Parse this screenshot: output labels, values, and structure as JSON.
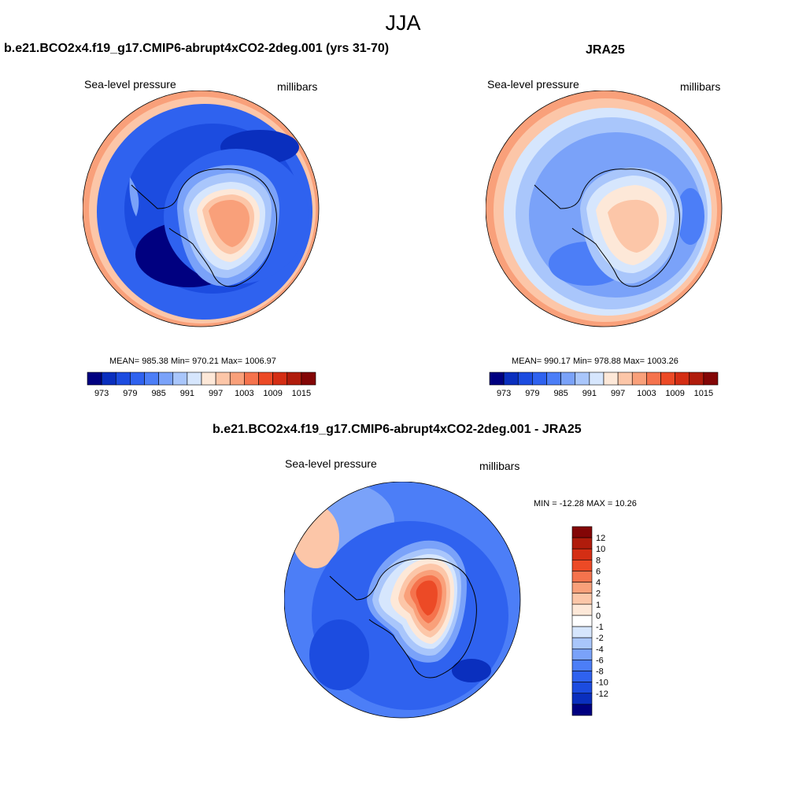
{
  "page": {
    "title": "JJA"
  },
  "colors": {
    "abs_palette": [
      "#000080",
      "#0a2fbe",
      "#1c4ce0",
      "#2f62ef",
      "#4c7ef7",
      "#7aa2f9",
      "#a9c6fb",
      "#d6e6fd",
      "#fde8d8",
      "#fcc6a8",
      "#f9a07a",
      "#f5734d",
      "#ec4a26",
      "#d42e14",
      "#b01c0c",
      "#830606"
    ],
    "diff_palette": [
      "#000080",
      "#0a2fbe",
      "#1c4ce0",
      "#2f62ef",
      "#4c7ef7",
      "#7aa2f9",
      "#a9c6fb",
      "#d6e6fd",
      "#ffffff",
      "#fde8d8",
      "#fcc6a8",
      "#f9a07a",
      "#f5734d",
      "#ec4a26",
      "#d42e14",
      "#b01c0c",
      "#830606"
    ]
  },
  "chart_data": [
    {
      "type": "heatmap",
      "projection": "south-polar-stereographic",
      "title": "b.e21.BCO2x4.f19_g17.CMIP6-abrupt4xCO2-2deg.001 (yrs 31-70)",
      "variable_label": "Sea-level pressure",
      "units_label": "millibars",
      "stats": {
        "mean": 985.38,
        "min": 970.21,
        "max": 1006.97
      },
      "stats_text": "MEAN= 985.38  Min= 970.21  Max= 1006.97",
      "colorbar": {
        "orientation": "horizontal",
        "levels": [
          973,
          976,
          979,
          982,
          985,
          988,
          991,
          994,
          997,
          1000,
          1003,
          1006,
          1009,
          1012,
          1015
        ],
        "tick_labels": [
          "973",
          "979",
          "985",
          "991",
          "997",
          "1003",
          "1009",
          "1015"
        ]
      }
    },
    {
      "type": "heatmap",
      "projection": "south-polar-stereographic",
      "title": "JRA25",
      "variable_label": "Sea-level pressure",
      "units_label": "millibars",
      "stats": {
        "mean": 990.17,
        "min": 978.88,
        "max": 1003.26
      },
      "stats_text": "MEAN= 990.17  Min= 978.88  Max= 1003.26",
      "colorbar": {
        "orientation": "horizontal",
        "levels": [
          973,
          976,
          979,
          982,
          985,
          988,
          991,
          994,
          997,
          1000,
          1003,
          1006,
          1009,
          1012,
          1015
        ],
        "tick_labels": [
          "973",
          "979",
          "985",
          "991",
          "997",
          "1003",
          "1009",
          "1015"
        ]
      }
    },
    {
      "type": "heatmap",
      "projection": "south-polar-stereographic",
      "title": "b.e21.BCO2x4.f19_g17.CMIP6-abrupt4xCO2-2deg.001 - JRA25",
      "variable_label": "Sea-level pressure",
      "units_label": "millibars",
      "stats": {
        "min": -12.28,
        "max": 10.26
      },
      "stats_text": "MIN = -12.28 MAX =  10.26",
      "colorbar": {
        "orientation": "vertical",
        "levels": [
          -12,
          -10,
          -8,
          -6,
          -4,
          -2,
          -1,
          0,
          1,
          2,
          4,
          6,
          8,
          10,
          12
        ],
        "tick_labels": [
          "12",
          "10",
          "8",
          "6",
          "4",
          "2",
          "1",
          "0",
          "-1",
          "-2",
          "-4",
          "-6",
          "-8",
          "-10",
          "-12"
        ]
      }
    }
  ]
}
